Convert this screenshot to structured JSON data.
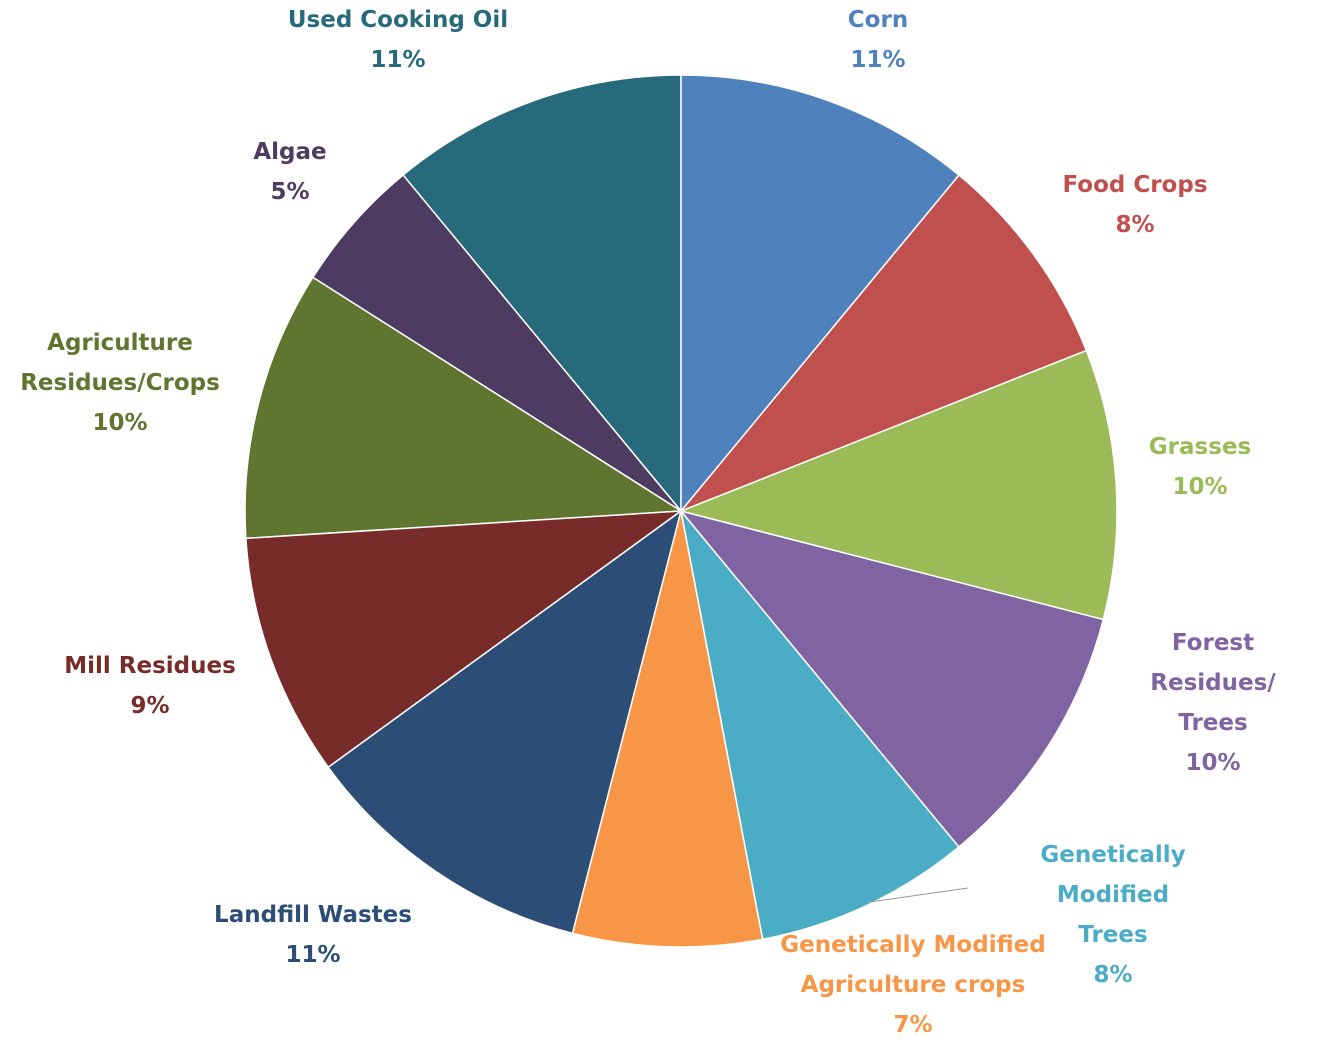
{
  "chart_data": {
    "type": "pie",
    "categories": [
      "Corn",
      "Food Crops",
      "Grasses",
      "Forest Residues/\nTrees",
      "Genetically Modified\nTrees",
      "Genetically Modified\nAgriculture crops",
      "Landfill Wastes",
      "Mill Residues",
      "Agriculture\nResidues/Crops",
      "Algae",
      "Used Cooking Oil"
    ],
    "values": [
      11,
      8,
      10,
      10,
      8,
      7,
      11,
      9,
      10,
      5,
      11
    ],
    "value_labels": [
      "11%",
      "8%",
      "10%",
      "10%",
      "8%",
      "7%",
      "11%",
      "9%",
      "10%",
      "5%",
      "11%"
    ],
    "colors": [
      "#4f81bd",
      "#c0504d",
      "#9bbb59",
      "#8064a2",
      "#4bacc6",
      "#f79646",
      "#2c4d75",
      "#772c2a",
      "#5f7530",
      "#4d3b62",
      "#276a7c"
    ]
  }
}
